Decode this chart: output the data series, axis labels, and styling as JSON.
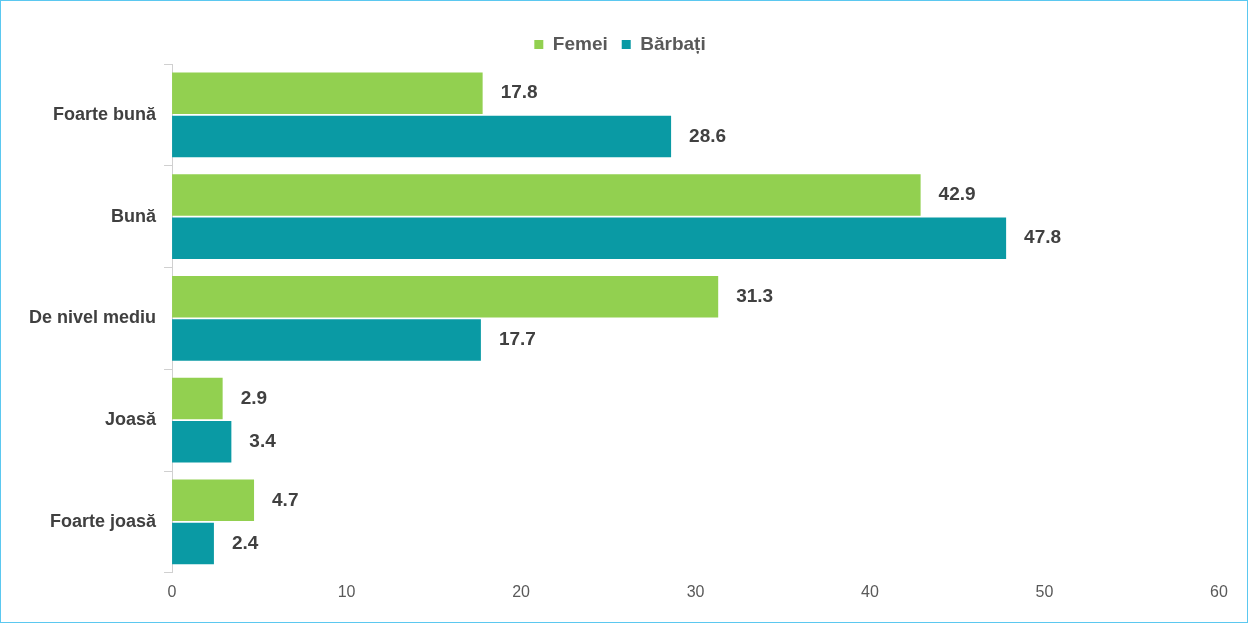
{
  "chart_data": {
    "type": "bar",
    "orientation": "horizontal",
    "categories": [
      "Foarte bună",
      "Bună",
      "De nivel mediu",
      "Joasă",
      "Foarte joasă"
    ],
    "series": [
      {
        "name": "Femei",
        "color": "#92d050",
        "values": [
          17.8,
          42.9,
          31.3,
          2.9,
          4.7
        ]
      },
      {
        "name": "Bărbați",
        "color": "#0a9aa4",
        "values": [
          28.6,
          47.8,
          17.7,
          3.4,
          2.4
        ]
      }
    ],
    "xlim": [
      0,
      60
    ],
    "xticks": [
      0,
      10,
      20,
      30,
      40,
      50,
      60
    ],
    "grid": false,
    "legend": "top",
    "data_labels": true
  }
}
